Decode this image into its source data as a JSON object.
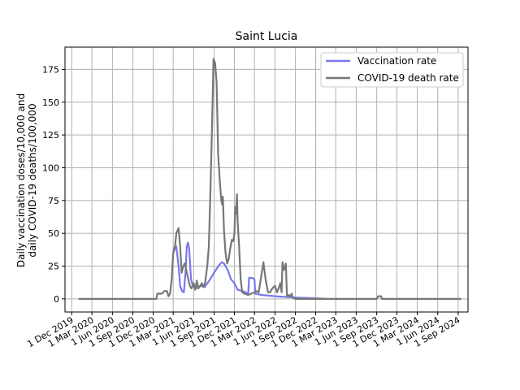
{
  "chart_data": {
    "type": "line",
    "title": "Saint Lucia",
    "xlabel": "",
    "ylabel_lines": [
      "Daily vaccination doses/10,000 and",
      "daily COVID-19 deaths/100,000"
    ],
    "ylim": [
      -10,
      192
    ],
    "xlim": [
      "2019-11-01",
      "2024-10-15"
    ],
    "grid": true,
    "legend_position": "top-right",
    "y_ticks": [
      0,
      25,
      50,
      75,
      100,
      125,
      150,
      175
    ],
    "x_ticks": [
      {
        "date": "2019-12-01",
        "label": "1 Dec 2019"
      },
      {
        "date": "2020-03-01",
        "label": "1 Mar 2020"
      },
      {
        "date": "2020-06-01",
        "label": "1 Jun 2020"
      },
      {
        "date": "2020-09-01",
        "label": "1 Sep 2020"
      },
      {
        "date": "2020-12-01",
        "label": "1 Dec 2020"
      },
      {
        "date": "2021-03-01",
        "label": "1 Mar 2021"
      },
      {
        "date": "2021-06-01",
        "label": "1 Jun 2021"
      },
      {
        "date": "2021-09-01",
        "label": "1 Sep 2021"
      },
      {
        "date": "2021-12-01",
        "label": "1 Dec 2021"
      },
      {
        "date": "2022-03-01",
        "label": "1 Mar 2022"
      },
      {
        "date": "2022-06-01",
        "label": "1 Jun 2022"
      },
      {
        "date": "2022-09-01",
        "label": "1 Sep 2022"
      },
      {
        "date": "2022-12-01",
        "label": "1 Dec 2022"
      },
      {
        "date": "2023-03-01",
        "label": "1 Mar 2023"
      },
      {
        "date": "2023-06-01",
        "label": "1 Jun 2023"
      },
      {
        "date": "2023-09-01",
        "label": "1 Sep 2023"
      },
      {
        "date": "2023-12-01",
        "label": "1 Dec 2023"
      },
      {
        "date": "2024-03-01",
        "label": "1 Mar 2024"
      },
      {
        "date": "2024-06-01",
        "label": "1 Jun 2024"
      },
      {
        "date": "2024-09-01",
        "label": "1 Sep 2024"
      }
    ],
    "series": [
      {
        "name": "Vaccination rate",
        "color": "#7878f0",
        "points": [
          [
            "2021-03-01",
            35
          ],
          [
            "2021-03-05",
            39
          ],
          [
            "2021-03-15",
            40
          ],
          [
            "2021-03-25",
            25
          ],
          [
            "2021-04-01",
            10
          ],
          [
            "2021-04-10",
            6
          ],
          [
            "2021-04-18",
            5
          ],
          [
            "2021-04-25",
            20
          ],
          [
            "2021-05-01",
            40
          ],
          [
            "2021-05-06",
            43
          ],
          [
            "2021-05-12",
            38
          ],
          [
            "2021-05-20",
            15
          ],
          [
            "2021-05-28",
            10
          ],
          [
            "2021-06-10",
            8
          ],
          [
            "2021-07-01",
            10
          ],
          [
            "2021-07-20",
            9
          ],
          [
            "2021-08-10",
            14
          ],
          [
            "2021-09-01",
            20
          ],
          [
            "2021-09-20",
            25
          ],
          [
            "2021-10-05",
            28
          ],
          [
            "2021-10-15",
            27
          ],
          [
            "2021-11-01",
            22
          ],
          [
            "2021-11-15",
            15
          ],
          [
            "2021-12-01",
            12
          ],
          [
            "2021-12-15",
            7
          ],
          [
            "2022-01-05",
            6
          ],
          [
            "2022-01-20",
            5
          ],
          [
            "2022-02-01",
            4
          ],
          [
            "2022-02-05",
            16
          ],
          [
            "2022-02-20",
            16
          ],
          [
            "2022-03-01",
            15
          ],
          [
            "2022-03-05",
            4
          ],
          [
            "2022-04-01",
            3
          ],
          [
            "2022-06-01",
            2
          ],
          [
            "2022-09-01",
            1
          ],
          [
            "2022-12-01",
            0.5
          ],
          [
            "2023-01-20",
            0
          ]
        ]
      },
      {
        "name": "COVID-19 death rate",
        "color": "#777777",
        "points": [
          [
            "2020-01-01",
            0
          ],
          [
            "2020-12-15",
            0
          ],
          [
            "2020-12-20",
            4
          ],
          [
            "2021-01-10",
            4
          ],
          [
            "2021-01-20",
            6
          ],
          [
            "2021-02-01",
            6
          ],
          [
            "2021-02-08",
            2
          ],
          [
            "2021-02-15",
            4
          ],
          [
            "2021-02-22",
            15
          ],
          [
            "2021-03-01",
            35
          ],
          [
            "2021-03-08",
            38
          ],
          [
            "2021-03-15",
            50
          ],
          [
            "2021-03-20",
            52
          ],
          [
            "2021-03-25",
            54
          ],
          [
            "2021-04-01",
            40
          ],
          [
            "2021-04-08",
            20
          ],
          [
            "2021-04-15",
            25
          ],
          [
            "2021-04-22",
            27
          ],
          [
            "2021-05-01",
            20
          ],
          [
            "2021-05-08",
            15
          ],
          [
            "2021-05-15",
            10
          ],
          [
            "2021-05-22",
            8
          ],
          [
            "2021-06-01",
            12
          ],
          [
            "2021-06-08",
            7
          ],
          [
            "2021-06-15",
            14
          ],
          [
            "2021-06-22",
            8
          ],
          [
            "2021-07-01",
            10
          ],
          [
            "2021-07-08",
            12
          ],
          [
            "2021-07-15",
            9
          ],
          [
            "2021-07-22",
            12
          ],
          [
            "2021-08-01",
            25
          ],
          [
            "2021-08-08",
            40
          ],
          [
            "2021-08-15",
            80
          ],
          [
            "2021-08-22",
            130
          ],
          [
            "2021-08-29",
            183
          ],
          [
            "2021-09-05",
            180
          ],
          [
            "2021-09-12",
            165
          ],
          [
            "2021-09-19",
            110
          ],
          [
            "2021-09-26",
            90
          ],
          [
            "2021-10-03",
            75
          ],
          [
            "2021-10-07",
            72
          ],
          [
            "2021-10-10",
            78
          ],
          [
            "2021-10-15",
            52
          ],
          [
            "2021-10-22",
            35
          ],
          [
            "2021-10-29",
            27
          ],
          [
            "2021-11-05",
            30
          ],
          [
            "2021-11-12",
            38
          ],
          [
            "2021-11-19",
            45
          ],
          [
            "2021-11-26",
            44
          ],
          [
            "2021-12-01",
            50
          ],
          [
            "2021-12-05",
            70
          ],
          [
            "2021-12-08",
            65
          ],
          [
            "2021-12-12",
            80
          ],
          [
            "2021-12-15",
            60
          ],
          [
            "2021-12-22",
            40
          ],
          [
            "2021-12-29",
            15
          ],
          [
            "2022-01-05",
            5
          ],
          [
            "2022-01-15",
            4
          ],
          [
            "2022-02-01",
            3
          ],
          [
            "2022-02-15",
            4
          ],
          [
            "2022-03-01",
            5
          ],
          [
            "2022-03-10",
            6
          ],
          [
            "2022-03-20",
            5
          ],
          [
            "2022-04-01",
            18
          ],
          [
            "2022-04-10",
            28
          ],
          [
            "2022-04-20",
            15
          ],
          [
            "2022-05-01",
            5
          ],
          [
            "2022-05-10",
            5
          ],
          [
            "2022-05-20",
            8
          ],
          [
            "2022-06-01",
            10
          ],
          [
            "2022-06-10",
            5
          ],
          [
            "2022-06-20",
            9
          ],
          [
            "2022-06-25",
            12
          ],
          [
            "2022-07-01",
            5
          ],
          [
            "2022-07-05",
            28
          ],
          [
            "2022-07-12",
            22
          ],
          [
            "2022-07-20",
            27
          ],
          [
            "2022-07-25",
            2
          ],
          [
            "2022-08-01",
            3
          ],
          [
            "2022-08-08",
            2
          ],
          [
            "2022-08-15",
            4
          ],
          [
            "2022-08-20",
            1
          ],
          [
            "2022-09-01",
            0
          ],
          [
            "2023-09-01",
            0
          ],
          [
            "2023-09-08",
            2
          ],
          [
            "2023-09-20",
            2
          ],
          [
            "2023-09-25",
            0
          ],
          [
            "2024-09-15",
            0
          ]
        ]
      }
    ]
  }
}
